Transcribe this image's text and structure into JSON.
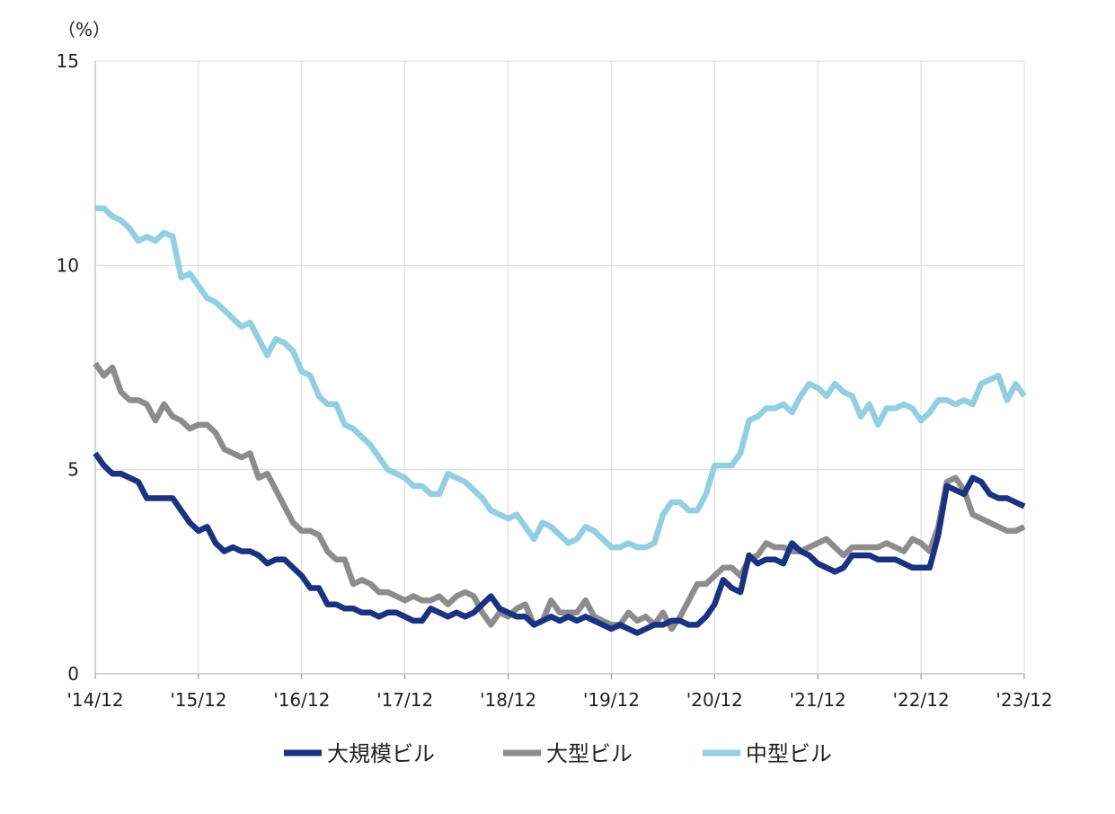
{
  "chart_data": {
    "type": "line",
    "title": "",
    "xlabel": "",
    "ylabel": "",
    "unit_label": "（%）",
    "ylim": [
      0,
      15
    ],
    "yticks": [
      0,
      5,
      10,
      15
    ],
    "xlim": [
      0,
      108
    ],
    "x_ticks": [
      {
        "label": "'14/12",
        "x": 0
      },
      {
        "label": "'15/12",
        "x": 12
      },
      {
        "label": "'16/12",
        "x": 24
      },
      {
        "label": "'17/12",
        "x": 36
      },
      {
        "label": "'18/12",
        "x": 48
      },
      {
        "label": "'19/12",
        "x": 60
      },
      {
        "label": "'20/12",
        "x": 72
      },
      {
        "label": "'21/12",
        "x": 84
      },
      {
        "label": "'22/12",
        "x": 96
      },
      {
        "label": "'23/12",
        "x": 108
      }
    ],
    "grid": true,
    "legend_position": "bottom",
    "series": [
      {
        "name": "大規模ビル",
        "color": "#1a3282",
        "points": [
          [
            0,
            5.4
          ],
          [
            1,
            5.1
          ],
          [
            2,
            4.9
          ],
          [
            3,
            4.9
          ],
          [
            4,
            4.8
          ],
          [
            5,
            4.7
          ],
          [
            6,
            4.3
          ],
          [
            7,
            4.3
          ],
          [
            8,
            4.3
          ],
          [
            9,
            4.3
          ],
          [
            10,
            4.0
          ],
          [
            11,
            3.7
          ],
          [
            12,
            3.5
          ],
          [
            13,
            3.6
          ],
          [
            14,
            3.2
          ],
          [
            15,
            3.0
          ],
          [
            16,
            3.1
          ],
          [
            17,
            3.0
          ],
          [
            18,
            3.0
          ],
          [
            19,
            2.9
          ],
          [
            20,
            2.7
          ],
          [
            21,
            2.8
          ],
          [
            22,
            2.8
          ],
          [
            23,
            2.6
          ],
          [
            24,
            2.4
          ],
          [
            25,
            2.1
          ],
          [
            26,
            2.1
          ],
          [
            27,
            1.7
          ],
          [
            28,
            1.7
          ],
          [
            29,
            1.6
          ],
          [
            30,
            1.6
          ],
          [
            31,
            1.5
          ],
          [
            32,
            1.5
          ],
          [
            33,
            1.4
          ],
          [
            34,
            1.5
          ],
          [
            35,
            1.5
          ],
          [
            36,
            1.4
          ],
          [
            37,
            1.3
          ],
          [
            38,
            1.3
          ],
          [
            39,
            1.6
          ],
          [
            40,
            1.5
          ],
          [
            41,
            1.4
          ],
          [
            42,
            1.5
          ],
          [
            43,
            1.4
          ],
          [
            44,
            1.5
          ],
          [
            45,
            1.7
          ],
          [
            46,
            1.9
          ],
          [
            47,
            1.6
          ],
          [
            48,
            1.5
          ],
          [
            49,
            1.4
          ],
          [
            50,
            1.4
          ],
          [
            51,
            1.2
          ],
          [
            52,
            1.3
          ],
          [
            53,
            1.4
          ],
          [
            54,
            1.3
          ],
          [
            55,
            1.4
          ],
          [
            56,
            1.3
          ],
          [
            57,
            1.4
          ],
          [
            58,
            1.3
          ],
          [
            59,
            1.2
          ],
          [
            60,
            1.1
          ],
          [
            61,
            1.2
          ],
          [
            62,
            1.1
          ],
          [
            63,
            1.0
          ],
          [
            64,
            1.1
          ],
          [
            65,
            1.2
          ],
          [
            66,
            1.2
          ],
          [
            67,
            1.3
          ],
          [
            68,
            1.3
          ],
          [
            69,
            1.2
          ],
          [
            70,
            1.2
          ],
          [
            71,
            1.4
          ],
          [
            72,
            1.7
          ],
          [
            73,
            2.3
          ],
          [
            74,
            2.1
          ],
          [
            75,
            2.0
          ],
          [
            76,
            2.9
          ],
          [
            77,
            2.7
          ],
          [
            78,
            2.8
          ],
          [
            79,
            2.8
          ],
          [
            80,
            2.7
          ],
          [
            81,
            3.2
          ],
          [
            82,
            3.0
          ],
          [
            83,
            2.9
          ],
          [
            84,
            2.7
          ],
          [
            85,
            2.6
          ],
          [
            86,
            2.5
          ],
          [
            87,
            2.6
          ],
          [
            88,
            2.9
          ],
          [
            89,
            2.9
          ],
          [
            90,
            2.9
          ],
          [
            91,
            2.8
          ],
          [
            92,
            2.8
          ],
          [
            93,
            2.8
          ],
          [
            94,
            2.7
          ],
          [
            95,
            2.6
          ],
          [
            96,
            2.6
          ],
          [
            97,
            2.6
          ],
          [
            98,
            3.4
          ],
          [
            99,
            4.6
          ],
          [
            100,
            4.5
          ],
          [
            101,
            4.4
          ],
          [
            102,
            4.8
          ],
          [
            103,
            4.7
          ],
          [
            104,
            4.4
          ],
          [
            105,
            4.3
          ],
          [
            106,
            4.3
          ],
          [
            107,
            4.2
          ],
          [
            108,
            4.1
          ]
        ]
      },
      {
        "name": "大型ビル",
        "color": "#8c8c8c",
        "points": [
          [
            0,
            7.6
          ],
          [
            1,
            7.3
          ],
          [
            2,
            7.5
          ],
          [
            3,
            6.9
          ],
          [
            4,
            6.7
          ],
          [
            5,
            6.7
          ],
          [
            6,
            6.6
          ],
          [
            7,
            6.2
          ],
          [
            8,
            6.6
          ],
          [
            9,
            6.3
          ],
          [
            10,
            6.2
          ],
          [
            11,
            6.0
          ],
          [
            12,
            6.1
          ],
          [
            13,
            6.1
          ],
          [
            14,
            5.9
          ],
          [
            15,
            5.5
          ],
          [
            16,
            5.4
          ],
          [
            17,
            5.3
          ],
          [
            18,
            5.4
          ],
          [
            19,
            4.8
          ],
          [
            20,
            4.9
          ],
          [
            21,
            4.5
          ],
          [
            22,
            4.1
          ],
          [
            23,
            3.7
          ],
          [
            24,
            3.5
          ],
          [
            25,
            3.5
          ],
          [
            26,
            3.4
          ],
          [
            27,
            3.0
          ],
          [
            28,
            2.8
          ],
          [
            29,
            2.8
          ],
          [
            30,
            2.2
          ],
          [
            31,
            2.3
          ],
          [
            32,
            2.2
          ],
          [
            33,
            2.0
          ],
          [
            34,
            2.0
          ],
          [
            35,
            1.9
          ],
          [
            36,
            1.8
          ],
          [
            37,
            1.9
          ],
          [
            38,
            1.8
          ],
          [
            39,
            1.8
          ],
          [
            40,
            1.9
          ],
          [
            41,
            1.7
          ],
          [
            42,
            1.9
          ],
          [
            43,
            2.0
          ],
          [
            44,
            1.9
          ],
          [
            45,
            1.5
          ],
          [
            46,
            1.2
          ],
          [
            47,
            1.5
          ],
          [
            48,
            1.4
          ],
          [
            49,
            1.6
          ],
          [
            50,
            1.7
          ],
          [
            51,
            1.2
          ],
          [
            52,
            1.3
          ],
          [
            53,
            1.8
          ],
          [
            54,
            1.5
          ],
          [
            55,
            1.5
          ],
          [
            56,
            1.5
          ],
          [
            57,
            1.8
          ],
          [
            58,
            1.4
          ],
          [
            59,
            1.3
          ],
          [
            60,
            1.2
          ],
          [
            61,
            1.2
          ],
          [
            62,
            1.5
          ],
          [
            63,
            1.3
          ],
          [
            64,
            1.4
          ],
          [
            65,
            1.2
          ],
          [
            66,
            1.5
          ],
          [
            67,
            1.1
          ],
          [
            68,
            1.4
          ],
          [
            69,
            1.8
          ],
          [
            70,
            2.2
          ],
          [
            71,
            2.2
          ],
          [
            72,
            2.4
          ],
          [
            73,
            2.6
          ],
          [
            74,
            2.6
          ],
          [
            75,
            2.4
          ],
          [
            76,
            2.8
          ],
          [
            77,
            2.9
          ],
          [
            78,
            3.2
          ],
          [
            79,
            3.1
          ],
          [
            80,
            3.1
          ],
          [
            81,
            3.0
          ],
          [
            82,
            3.0
          ],
          [
            83,
            3.1
          ],
          [
            84,
            3.2
          ],
          [
            85,
            3.3
          ],
          [
            86,
            3.1
          ],
          [
            87,
            2.9
          ],
          [
            88,
            3.1
          ],
          [
            89,
            3.1
          ],
          [
            90,
            3.1
          ],
          [
            91,
            3.1
          ],
          [
            92,
            3.2
          ],
          [
            93,
            3.1
          ],
          [
            94,
            3.0
          ],
          [
            95,
            3.3
          ],
          [
            96,
            3.2
          ],
          [
            97,
            3.0
          ],
          [
            98,
            3.6
          ],
          [
            99,
            4.7
          ],
          [
            100,
            4.8
          ],
          [
            101,
            4.5
          ],
          [
            102,
            3.9
          ],
          [
            103,
            3.8
          ],
          [
            104,
            3.7
          ],
          [
            105,
            3.6
          ],
          [
            106,
            3.5
          ],
          [
            107,
            3.5
          ],
          [
            108,
            3.6
          ]
        ]
      },
      {
        "name": "中型ビル",
        "color": "#92cfe3",
        "points": [
          [
            0,
            11.4
          ],
          [
            1,
            11.4
          ],
          [
            2,
            11.2
          ],
          [
            3,
            11.1
          ],
          [
            4,
            10.9
          ],
          [
            5,
            10.6
          ],
          [
            6,
            10.7
          ],
          [
            7,
            10.6
          ],
          [
            8,
            10.8
          ],
          [
            9,
            10.7
          ],
          [
            10,
            9.7
          ],
          [
            11,
            9.8
          ],
          [
            12,
            9.5
          ],
          [
            13,
            9.2
          ],
          [
            14,
            9.1
          ],
          [
            15,
            8.9
          ],
          [
            16,
            8.7
          ],
          [
            17,
            8.5
          ],
          [
            18,
            8.6
          ],
          [
            19,
            8.2
          ],
          [
            20,
            7.8
          ],
          [
            21,
            8.2
          ],
          [
            22,
            8.1
          ],
          [
            23,
            7.9
          ],
          [
            24,
            7.4
          ],
          [
            25,
            7.3
          ],
          [
            26,
            6.8
          ],
          [
            27,
            6.6
          ],
          [
            28,
            6.6
          ],
          [
            29,
            6.1
          ],
          [
            30,
            6.0
          ],
          [
            31,
            5.8
          ],
          [
            32,
            5.6
          ],
          [
            33,
            5.3
          ],
          [
            34,
            5.0
          ],
          [
            35,
            4.9
          ],
          [
            36,
            4.8
          ],
          [
            37,
            4.6
          ],
          [
            38,
            4.6
          ],
          [
            39,
            4.4
          ],
          [
            40,
            4.4
          ],
          [
            41,
            4.9
          ],
          [
            42,
            4.8
          ],
          [
            43,
            4.7
          ],
          [
            44,
            4.5
          ],
          [
            45,
            4.3
          ],
          [
            46,
            4.0
          ],
          [
            47,
            3.9
          ],
          [
            48,
            3.8
          ],
          [
            49,
            3.9
          ],
          [
            50,
            3.6
          ],
          [
            51,
            3.3
          ],
          [
            52,
            3.7
          ],
          [
            53,
            3.6
          ],
          [
            54,
            3.4
          ],
          [
            55,
            3.2
          ],
          [
            56,
            3.3
          ],
          [
            57,
            3.6
          ],
          [
            58,
            3.5
          ],
          [
            59,
            3.3
          ],
          [
            60,
            3.1
          ],
          [
            61,
            3.1
          ],
          [
            62,
            3.2
          ],
          [
            63,
            3.1
          ],
          [
            64,
            3.1
          ],
          [
            65,
            3.2
          ],
          [
            66,
            3.9
          ],
          [
            67,
            4.2
          ],
          [
            68,
            4.2
          ],
          [
            69,
            4.0
          ],
          [
            70,
            4.0
          ],
          [
            71,
            4.4
          ],
          [
            72,
            5.1
          ],
          [
            73,
            5.1
          ],
          [
            74,
            5.1
          ],
          [
            75,
            5.4
          ],
          [
            76,
            6.2
          ],
          [
            77,
            6.3
          ],
          [
            78,
            6.5
          ],
          [
            79,
            6.5
          ],
          [
            80,
            6.6
          ],
          [
            81,
            6.4
          ],
          [
            82,
            6.8
          ],
          [
            83,
            7.1
          ],
          [
            84,
            7.0
          ],
          [
            85,
            6.8
          ],
          [
            86,
            7.1
          ],
          [
            87,
            6.9
          ],
          [
            88,
            6.8
          ],
          [
            89,
            6.3
          ],
          [
            90,
            6.6
          ],
          [
            91,
            6.1
          ],
          [
            92,
            6.5
          ],
          [
            93,
            6.5
          ],
          [
            94,
            6.6
          ],
          [
            95,
            6.5
          ],
          [
            96,
            6.2
          ],
          [
            97,
            6.4
          ],
          [
            98,
            6.7
          ],
          [
            99,
            6.7
          ],
          [
            100,
            6.6
          ],
          [
            101,
            6.7
          ],
          [
            102,
            6.6
          ],
          [
            103,
            7.1
          ],
          [
            104,
            7.2
          ],
          [
            105,
            7.3
          ],
          [
            106,
            6.7
          ],
          [
            107,
            7.1
          ],
          [
            108,
            6.8
          ]
        ]
      }
    ]
  }
}
